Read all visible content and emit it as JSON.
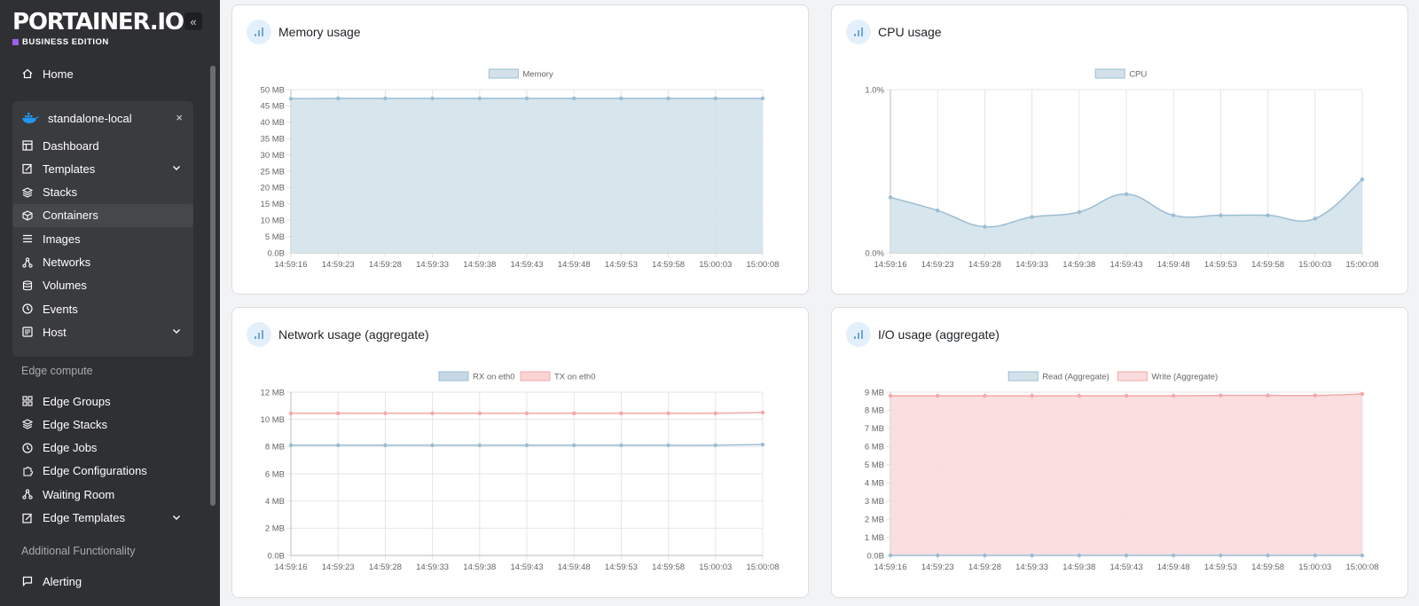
{
  "brand": {
    "logo": "PORTAINER.IO",
    "edition": "BUSINESS EDITION"
  },
  "sidebar": {
    "collapse_icon": "«",
    "home": "Home",
    "environment": {
      "name": "standalone-local",
      "close": "×"
    },
    "env_items": [
      {
        "label": "Dashboard",
        "icon": "dashboard-icon"
      },
      {
        "label": "Templates",
        "icon": "edit-icon",
        "expandable": true
      },
      {
        "label": "Stacks",
        "icon": "layers-icon"
      },
      {
        "label": "Containers",
        "icon": "box-icon",
        "active": true
      },
      {
        "label": "Images",
        "icon": "list-icon"
      },
      {
        "label": "Networks",
        "icon": "network-icon"
      },
      {
        "label": "Volumes",
        "icon": "database-icon"
      },
      {
        "label": "Events",
        "icon": "clock-icon"
      },
      {
        "label": "Host",
        "icon": "server-icon",
        "expandable": true
      }
    ],
    "edge_section": "Edge compute",
    "edge_items": [
      {
        "label": "Edge Groups",
        "icon": "grid-icon"
      },
      {
        "label": "Edge Stacks",
        "icon": "layers-icon"
      },
      {
        "label": "Edge Jobs",
        "icon": "clock-icon"
      },
      {
        "label": "Edge Configurations",
        "icon": "puzzle-icon"
      },
      {
        "label": "Waiting Room",
        "icon": "network-icon"
      },
      {
        "label": "Edge Templates",
        "icon": "edit-icon",
        "expandable": true
      }
    ],
    "additional_section": "Additional Functionality",
    "additional_items": [
      {
        "label": "Alerting",
        "icon": "message-icon"
      }
    ]
  },
  "cards": {
    "memory": {
      "title": "Memory usage"
    },
    "cpu": {
      "title": "CPU usage"
    },
    "network": {
      "title": "Network usage (aggregate)"
    },
    "io": {
      "title": "I/O usage (aggregate)"
    }
  },
  "chart_data": [
    {
      "id": "memory",
      "type": "area",
      "x": [
        "14:59:16",
        "14:59:23",
        "14:59:28",
        "14:59:33",
        "14:59:38",
        "14:59:43",
        "14:59:48",
        "14:59:53",
        "14:59:58",
        "15:00:03",
        "15:00:08"
      ],
      "yticks": [
        "0.0B",
        "5 MB",
        "10 MB",
        "15 MB",
        "20 MB",
        "25 MB",
        "30 MB",
        "35 MB",
        "40 MB",
        "45 MB",
        "50 MB"
      ],
      "ylim": [
        0,
        50
      ],
      "series": [
        {
          "name": "Memory",
          "color": "#9bbdd3",
          "fill": "#d3e2ea",
          "values": [
            47.2,
            47.3,
            47.3,
            47.3,
            47.3,
            47.3,
            47.3,
            47.3,
            47.3,
            47.3,
            47.3
          ]
        }
      ]
    },
    {
      "id": "cpu",
      "type": "area",
      "x": [
        "14:59:16",
        "14:59:23",
        "14:59:28",
        "14:59:33",
        "14:59:38",
        "14:59:43",
        "14:59:48",
        "14:59:53",
        "14:59:58",
        "15:00:03",
        "15:00:08"
      ],
      "yticks": [
        "0.0%",
        "1.0%"
      ],
      "ylim": [
        0,
        1.0
      ],
      "series": [
        {
          "name": "CPU",
          "color": "#9bbdd3",
          "fill": "#d3e2ea",
          "values": [
            0.34,
            0.26,
            0.16,
            0.22,
            0.25,
            0.36,
            0.23,
            0.23,
            0.23,
            0.21,
            0.45
          ]
        }
      ]
    },
    {
      "id": "network",
      "type": "line",
      "x": [
        "14:59:16",
        "14:59:23",
        "14:59:28",
        "14:59:33",
        "14:59:38",
        "14:59:43",
        "14:59:48",
        "14:59:53",
        "14:59:58",
        "15:00:03",
        "15:00:08"
      ],
      "yticks": [
        "0.0B",
        "2 MB",
        "4 MB",
        "6 MB",
        "8 MB",
        "10 MB",
        "12 MB"
      ],
      "ylim": [
        0,
        12
      ],
      "series": [
        {
          "name": "RX on eth0",
          "color": "#9bbdd3",
          "fill": "#c7d8e4",
          "values": [
            8.1,
            8.1,
            8.1,
            8.1,
            8.1,
            8.1,
            8.1,
            8.1,
            8.1,
            8.1,
            8.15
          ]
        },
        {
          "name": "TX on eth0",
          "color": "#f4a8a8",
          "fill": "#fbd3d3",
          "values": [
            10.45,
            10.45,
            10.45,
            10.45,
            10.45,
            10.45,
            10.45,
            10.45,
            10.45,
            10.45,
            10.5
          ]
        }
      ]
    },
    {
      "id": "io",
      "type": "area",
      "x": [
        "14:59:16",
        "14:59:23",
        "14:59:28",
        "14:59:33",
        "14:59:38",
        "14:59:43",
        "14:59:48",
        "14:59:53",
        "14:59:58",
        "15:00:03",
        "15:00:08"
      ],
      "yticks": [
        "0.0B",
        "1 MB",
        "2 MB",
        "3 MB",
        "4 MB",
        "5 MB",
        "6 MB",
        "7 MB",
        "8 MB",
        "9 MB"
      ],
      "ylim": [
        0,
        9
      ],
      "series": [
        {
          "name": "Read (Aggregate)",
          "color": "#9bbdd3",
          "fill": "#d3e2ea",
          "values": [
            0,
            0,
            0,
            0,
            0,
            0,
            0,
            0,
            0,
            0,
            0
          ]
        },
        {
          "name": "Write (Aggregate)",
          "color": "#f4a8a8",
          "fill": "#fadadd",
          "values": [
            8.8,
            8.8,
            8.8,
            8.8,
            8.8,
            8.8,
            8.8,
            8.82,
            8.82,
            8.82,
            8.9
          ]
        }
      ]
    }
  ]
}
